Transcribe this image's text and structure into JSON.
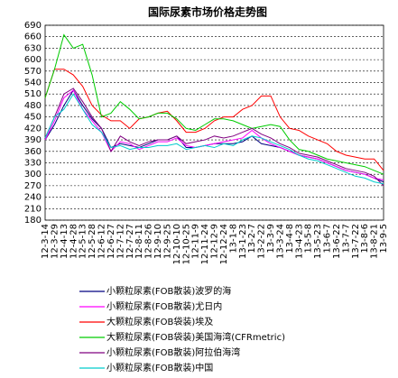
{
  "chart_data": {
    "type": "line",
    "title": "国际尿素市场价格走势图",
    "categories": [
      "12-3-14",
      "12-3-29",
      "12-4-13",
      "12-4-28",
      "12-5-13",
      "12-5-28",
      "12-6-12",
      "12-6-27",
      "12-7-12",
      "12-7-27",
      "12-8-11",
      "12-8-26",
      "12-9-10",
      "12-9-25",
      "12-10-10",
      "12-10-25",
      "12-11-9",
      "12-11-24",
      "12-12-9",
      "12-12-24",
      "13-1-8",
      "13-1-23",
      "13-2-7",
      "13-2-22",
      "13-3-9",
      "13-3-24",
      "13-4-8",
      "13-4-23",
      "13-5-8",
      "13-5-23",
      "13-6-7",
      "13-6-22",
      "13-7-7",
      "13-7-22",
      "13-8-6",
      "13-8-21",
      "13-9-5"
    ],
    "ylim": [
      180,
      690
    ],
    "yticks": [
      180,
      210,
      240,
      270,
      300,
      330,
      360,
      390,
      420,
      450,
      480,
      510,
      540,
      570,
      600,
      630,
      660,
      690
    ],
    "grid": true,
    "legend": "bottom",
    "series": [
      {
        "name": "小颗粒尿素(FOB散装)波罗的海",
        "color": "#000080",
        "values": [
          390,
          430,
          480,
          520,
          480,
          445,
          420,
          370,
          380,
          375,
          370,
          380,
          390,
          390,
          400,
          370,
          370,
          375,
          380,
          380,
          380,
          385,
          400,
          380,
          375,
          370,
          360,
          350,
          345,
          340,
          330,
          320,
          310,
          305,
          300,
          290,
          280
        ]
      },
      {
        "name": "小颗粒尿素(FOB散装)尤日内",
        "color": "#ff00ff",
        "values": [
          390,
          440,
          500,
          520,
          470,
          440,
          410,
          360,
          385,
          380,
          365,
          375,
          385,
          385,
          395,
          375,
          370,
          375,
          380,
          385,
          390,
          395,
          415,
          395,
          380,
          370,
          360,
          350,
          345,
          340,
          330,
          320,
          310,
          305,
          300,
          290,
          285
        ]
      },
      {
        "name": "大颗粒尿素(FOB袋装)埃及",
        "color": "#ff0000",
        "values": [
          500,
          575,
          575,
          560,
          530,
          480,
          455,
          440,
          440,
          420,
          445,
          450,
          460,
          465,
          440,
          410,
          410,
          420,
          440,
          450,
          450,
          470,
          480,
          505,
          505,
          450,
          420,
          415,
          400,
          390,
          380,
          360,
          350,
          345,
          340,
          340,
          310
        ]
      },
      {
        "name": "大颗粒尿素(FOB袋装)美国海湾(CFRmetric)",
        "color": "#00cc00",
        "values": [
          500,
          575,
          665,
          630,
          640,
          560,
          450,
          460,
          490,
          470,
          445,
          450,
          460,
          460,
          445,
          420,
          415,
          430,
          445,
          445,
          440,
          430,
          420,
          425,
          430,
          425,
          390,
          365,
          360,
          350,
          340,
          335,
          330,
          325,
          320,
          310,
          300
        ]
      },
      {
        "name": "小颗粒尿素(FOB散装)阿拉伯海湾",
        "color": "#800080",
        "values": [
          395,
          450,
          510,
          525,
          490,
          450,
          420,
          360,
          400,
          385,
          375,
          385,
          390,
          390,
          400,
          380,
          385,
          390,
          400,
          395,
          400,
          410,
          420,
          405,
          395,
          380,
          370,
          355,
          350,
          345,
          335,
          325,
          315,
          310,
          305,
          295,
          270
        ]
      },
      {
        "name": "小颗粒尿素(FOB散装)中国",
        "color": "#00cccc",
        "values": [
          395,
          450,
          470,
          510,
          470,
          430,
          410,
          370,
          375,
          365,
          370,
          370,
          375,
          375,
          380,
          365,
          370,
          375,
          370,
          380,
          375,
          390,
          400,
          395,
          385,
          375,
          365,
          350,
          340,
          335,
          325,
          315,
          305,
          295,
          290,
          280,
          275
        ]
      }
    ]
  }
}
